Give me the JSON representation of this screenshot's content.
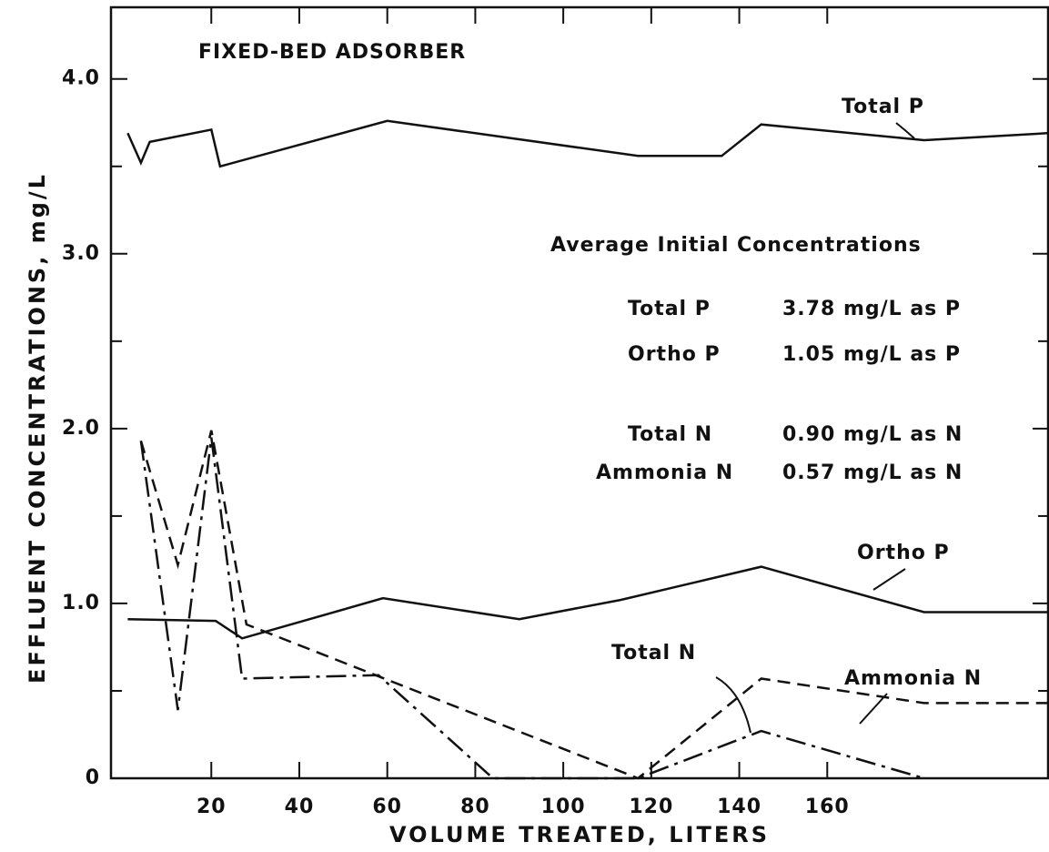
{
  "chart_data": {
    "type": "line",
    "title": "FIXED-BED ADSORBER",
    "x_label": "VOLUME TREATED, LITERS",
    "y_label": "EFFLUENT CONCENTRATIONS, mg/L",
    "xlim": [
      -2.8,
      210.4
    ],
    "ylim": [
      0,
      4.41
    ],
    "xticks": [
      20,
      40,
      60,
      80,
      100,
      120,
      140,
      160
    ],
    "yticks": [
      0,
      {
        "value": 1,
        "label": "1.0"
      },
      {
        "value": 2,
        "label": "2.0"
      },
      {
        "value": 3,
        "label": "3.0"
      },
      {
        "value": 4,
        "label": "4.0"
      }
    ],
    "yticks_minor": [
      0.5,
      1.5,
      2.5,
      3.5
    ],
    "grid": false,
    "series": [
      {
        "name": "Total P",
        "color": "#111111",
        "dash": "solid",
        "x": [
          1,
          4,
          6,
          20,
          22,
          60,
          117,
          136,
          145,
          182,
          210
        ],
        "values": [
          3.69,
          3.52,
          3.64,
          3.71,
          3.5,
          3.76,
          3.56,
          3.56,
          3.74,
          3.65,
          3.69
        ]
      },
      {
        "name": "Ortho P",
        "color": "#111111",
        "dash": "solid",
        "x": [
          1,
          21,
          27,
          59,
          90,
          113,
          145,
          182,
          210
        ],
        "values": [
          0.91,
          0.9,
          0.8,
          1.03,
          0.91,
          1.02,
          1.21,
          0.95,
          0.95
        ]
      },
      {
        "name": "Total N",
        "color": "#111111",
        "dash": "dashed",
        "x": [
          4,
          12.4,
          20,
          28,
          117,
          145,
          182,
          210
        ],
        "values": [
          1.93,
          1.22,
          1.99,
          0.88,
          0,
          0.57,
          0.43,
          0.43
        ]
      },
      {
        "name": "Ammonia N",
        "color": "#111111",
        "dash": "dashdot",
        "x": [
          4,
          12.4,
          20,
          27,
          58,
          84,
          117,
          145,
          182
        ],
        "values": [
          1.93,
          0.39,
          1.95,
          0.57,
          0.59,
          0,
          0,
          0.27,
          0
        ]
      }
    ],
    "inset": {
      "title": "Average Initial Concentrations",
      "rows": [
        [
          "Total P",
          "3.78 mg/L as P"
        ],
        [
          "Ortho P",
          "1.05 mg/L as P"
        ],
        [
          "Total N",
          "0.90 mg/L as N"
        ],
        [
          "Ammonia N",
          "0.57 mg/L as N"
        ]
      ]
    }
  }
}
